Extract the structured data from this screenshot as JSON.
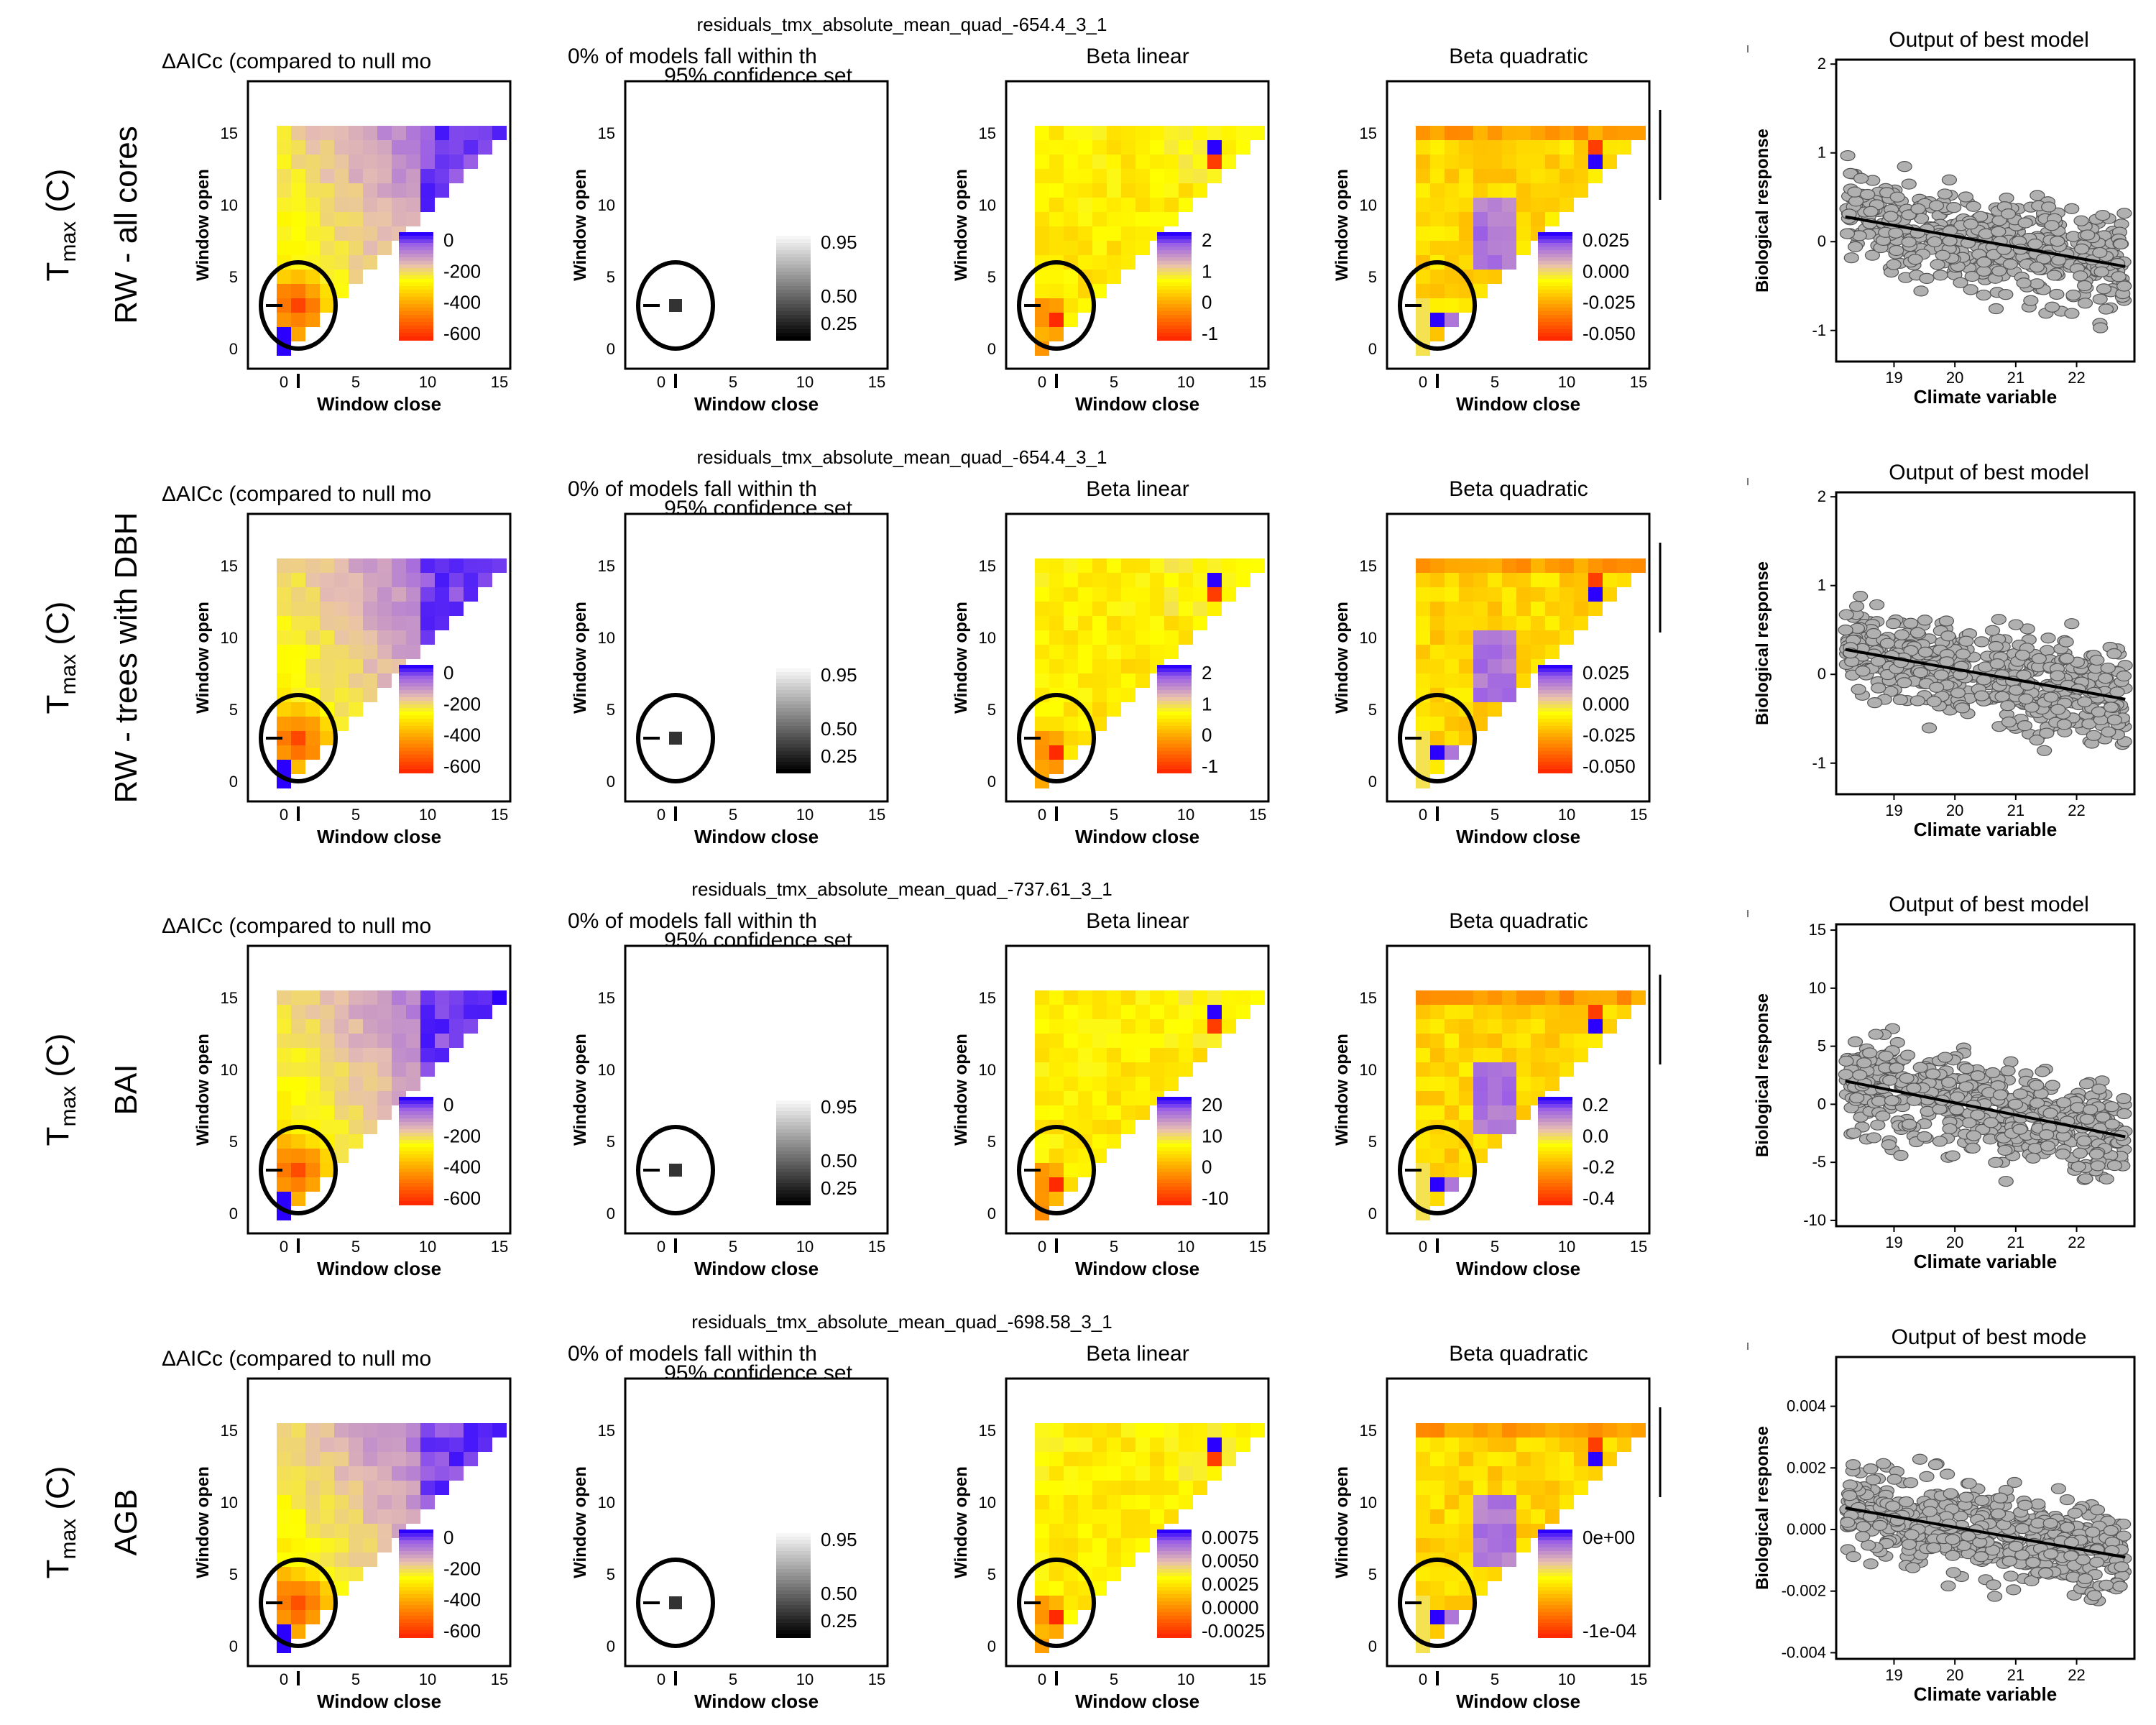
{
  "rows": [
    {
      "label_main": "T",
      "label_sub": "max",
      "label_unit": " (C)",
      "label_response": "RW - all cores",
      "file_title": "residuals_tmx_absolute_mean_quad_-654.4_3_1",
      "best_model": {
        "title": "Output of best model",
        "yticks": [
          "2",
          "1",
          "0",
          "-1"
        ],
        "ylim": [
          -1.35,
          2.05
        ],
        "ytickvals": [
          2,
          1,
          0,
          -1
        ],
        "line": [
          [
            18.2,
            0.28
          ],
          [
            22.8,
            -0.28
          ]
        ]
      },
      "beta_linear_legend": [
        "2",
        "1",
        "0",
        "-1"
      ],
      "beta_quad_legend": [
        "0.025",
        "0.000",
        "-0.025",
        "-0.050"
      ]
    },
    {
      "label_main": "T",
      "label_sub": "max",
      "label_unit": " (C)",
      "label_response": "RW - trees with DBH",
      "file_title": "residuals_tmx_absolute_mean_quad_-654.4_3_1",
      "best_model": {
        "title": "Output of best model",
        "yticks": [
          "2",
          "1",
          "0",
          "-1"
        ],
        "ylim": [
          -1.35,
          2.05
        ],
        "ytickvals": [
          2,
          1,
          0,
          -1
        ],
        "line": [
          [
            18.2,
            0.28
          ],
          [
            22.8,
            -0.28
          ]
        ]
      },
      "beta_linear_legend": [
        "2",
        "1",
        "0",
        "-1"
      ],
      "beta_quad_legend": [
        "0.025",
        "0.000",
        "-0.025",
        "-0.050"
      ]
    },
    {
      "label_main": "T",
      "label_sub": "max",
      "label_unit": " (C)",
      "label_response": "BAI",
      "file_title": "residuals_tmx_absolute_mean_quad_-737.61_3_1",
      "best_model": {
        "title": "Output of best model",
        "yticks": [
          "15",
          "10",
          "5",
          "0",
          "-5",
          "-10"
        ],
        "ylim": [
          -10.5,
          15.5
        ],
        "ytickvals": [
          15,
          10,
          5,
          0,
          -5,
          -10
        ],
        "line": [
          [
            18.2,
            2.0
          ],
          [
            22.8,
            -2.8
          ]
        ]
      },
      "beta_linear_legend": [
        "20",
        "10",
        "0",
        "-10"
      ],
      "beta_quad_legend": [
        "0.2",
        "0.0",
        "-0.2",
        "-0.4"
      ]
    },
    {
      "label_main": "T",
      "label_sub": "max",
      "label_unit": " (C)",
      "label_response": "AGB",
      "file_title": "residuals_tmx_absolute_mean_quad_-698.58_3_1",
      "best_model": {
        "title": "Output of best mode",
        "yticks": [
          "0.004",
          "0.002",
          "0.000",
          "-0.002",
          "-0.004"
        ],
        "ylim": [
          -0.0042,
          0.0056
        ],
        "ytickvals": [
          0.004,
          0.002,
          0.0,
          -0.002,
          -0.004
        ],
        "line": [
          [
            18.2,
            0.0007
          ],
          [
            22.8,
            -0.0009
          ]
        ]
      },
      "beta_linear_legend": [
        "0.0075",
        "0.0050",
        "0.0025",
        "0.0000",
        "-0.0025"
      ],
      "beta_quad_legend": [
        "0e+00",
        "-1e-04"
      ]
    }
  ],
  "panels": {
    "aic_title": "ΔAICc (compared to null mo",
    "conf_title_line1": "0% of models fall within th",
    "conf_title_line2": "95% confidence set",
    "beta_linear_title": "Beta linear",
    "beta_quad_title": "Beta quadratic",
    "xlabel": "Window close",
    "ylabel": "Window open",
    "bm_xlabel": "Climate variable",
    "bm_ylabel": "Biological response",
    "heat_ticks": [
      "0",
      "5",
      "10",
      "15"
    ],
    "aic_legend": [
      "0",
      "-200",
      "-400",
      "-600"
    ],
    "conf_legend": [
      "0.95",
      "0.50",
      "0.25"
    ],
    "bm_xticks": [
      "19",
      "20",
      "21",
      "22"
    ]
  },
  "chart_data": {
    "type": "heatmap",
    "description_axes": {
      "x": "Window close",
      "y": "Window open",
      "xlim": [
        0,
        15
      ],
      "ylim": [
        0,
        15
      ]
    },
    "best_window": {
      "open": 3,
      "close": 1
    },
    "scatter_x_range": [
      18.2,
      22.8
    ],
    "colors": {
      "heat_low": "#ff2a00",
      "heat_mid": "#ffff00",
      "heat_high": "#8a4fe0",
      "heat_top": "#2b00ff",
      "points": "#b0b0b0"
    }
  }
}
